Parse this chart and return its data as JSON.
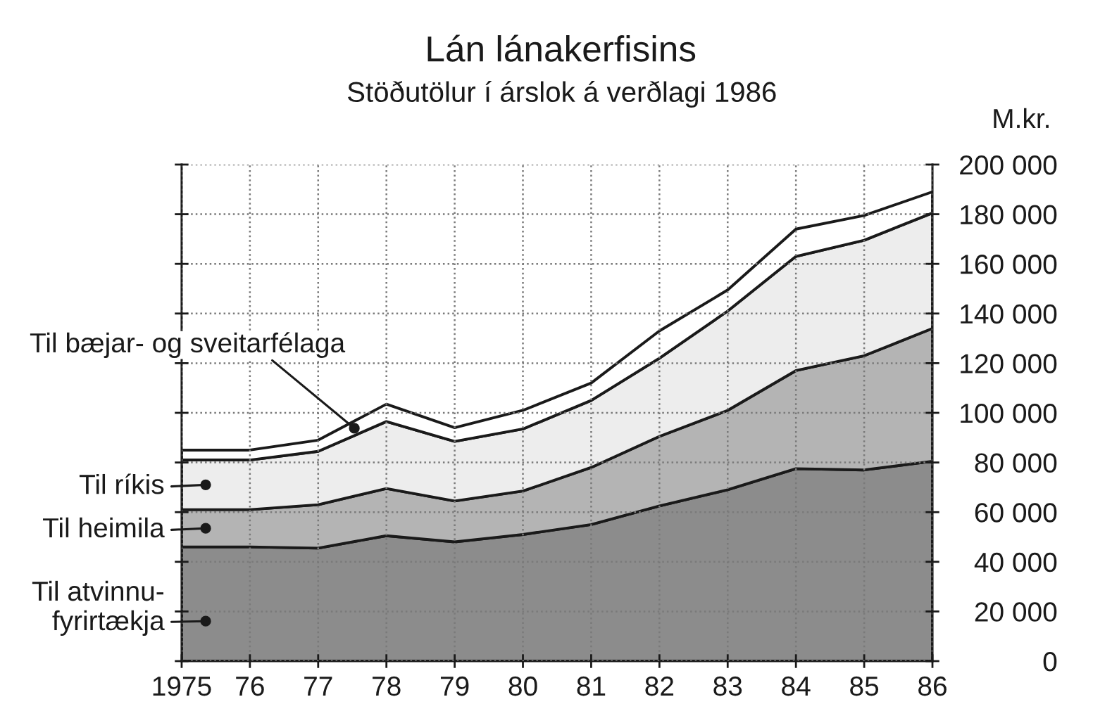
{
  "chart_data": {
    "type": "area",
    "title": "Lán lánakerfisins",
    "subtitle": "Stöðutölur í árslok á verðlagi 1986",
    "ylabel": "M.kr.",
    "stacked": true,
    "grid": true,
    "legend": "left",
    "x": [
      1975,
      1976,
      1977,
      1978,
      1979,
      1980,
      1981,
      1982,
      1983,
      1984,
      1985,
      1986
    ],
    "series": [
      {
        "name": "Til atvinnu-\nfyrirtækja",
        "color": "#8c8c8c",
        "values": [
          46000,
          46000,
          45500,
          50500,
          48000,
          51000,
          55000,
          62500,
          69000,
          77500,
          77000,
          80500
        ]
      },
      {
        "name": "Til heimila",
        "color": "#b4b4b4",
        "values": [
          15000,
          15000,
          17500,
          19000,
          16500,
          17500,
          23000,
          28000,
          32000,
          39500,
          46000,
          53500
        ]
      },
      {
        "name": "Til ríkis",
        "color": "#ededed",
        "values": [
          20000,
          20000,
          21500,
          27000,
          24000,
          25000,
          27000,
          31500,
          40000,
          46000,
          46500,
          46500
        ]
      },
      {
        "name": "Til bæjar- og sveitarfélaga",
        "color": "#ffffff",
        "values": [
          4000,
          4000,
          4500,
          7000,
          5500,
          7500,
          7000,
          11000,
          8500,
          11000,
          10000,
          8500
        ]
      }
    ],
    "xlim": [
      1975,
      1986
    ],
    "xticks": [
      1975,
      {
        "value": 1976,
        "label": "76"
      },
      {
        "value": 1977,
        "label": "77"
      },
      {
        "value": 1978,
        "label": "78"
      },
      {
        "value": 1979,
        "label": "79"
      },
      {
        "value": 1980,
        "label": "80"
      },
      {
        "value": 1981,
        "label": "81"
      },
      {
        "value": 1982,
        "label": "82"
      },
      {
        "value": 1983,
        "label": "83"
      },
      {
        "value": 1984,
        "label": "84"
      },
      {
        "value": 1985,
        "label": "85"
      },
      {
        "value": 1986,
        "label": "86"
      }
    ],
    "ylim": [
      0,
      200000
    ],
    "yticks": [
      0,
      {
        "value": 20000,
        "label": "20 000"
      },
      {
        "value": 40000,
        "label": "40 000"
      },
      {
        "value": 60000,
        "label": "60 000"
      },
      {
        "value": 80000,
        "label": "80 000"
      },
      {
        "value": 100000,
        "label": "100 000"
      },
      {
        "value": 120000,
        "label": "120 000"
      },
      {
        "value": 140000,
        "label": "140 000"
      },
      {
        "value": 160000,
        "label": "160 000"
      },
      {
        "value": 180000,
        "label": "180 000"
      },
      {
        "value": 200000,
        "label": "200 000"
      }
    ]
  }
}
